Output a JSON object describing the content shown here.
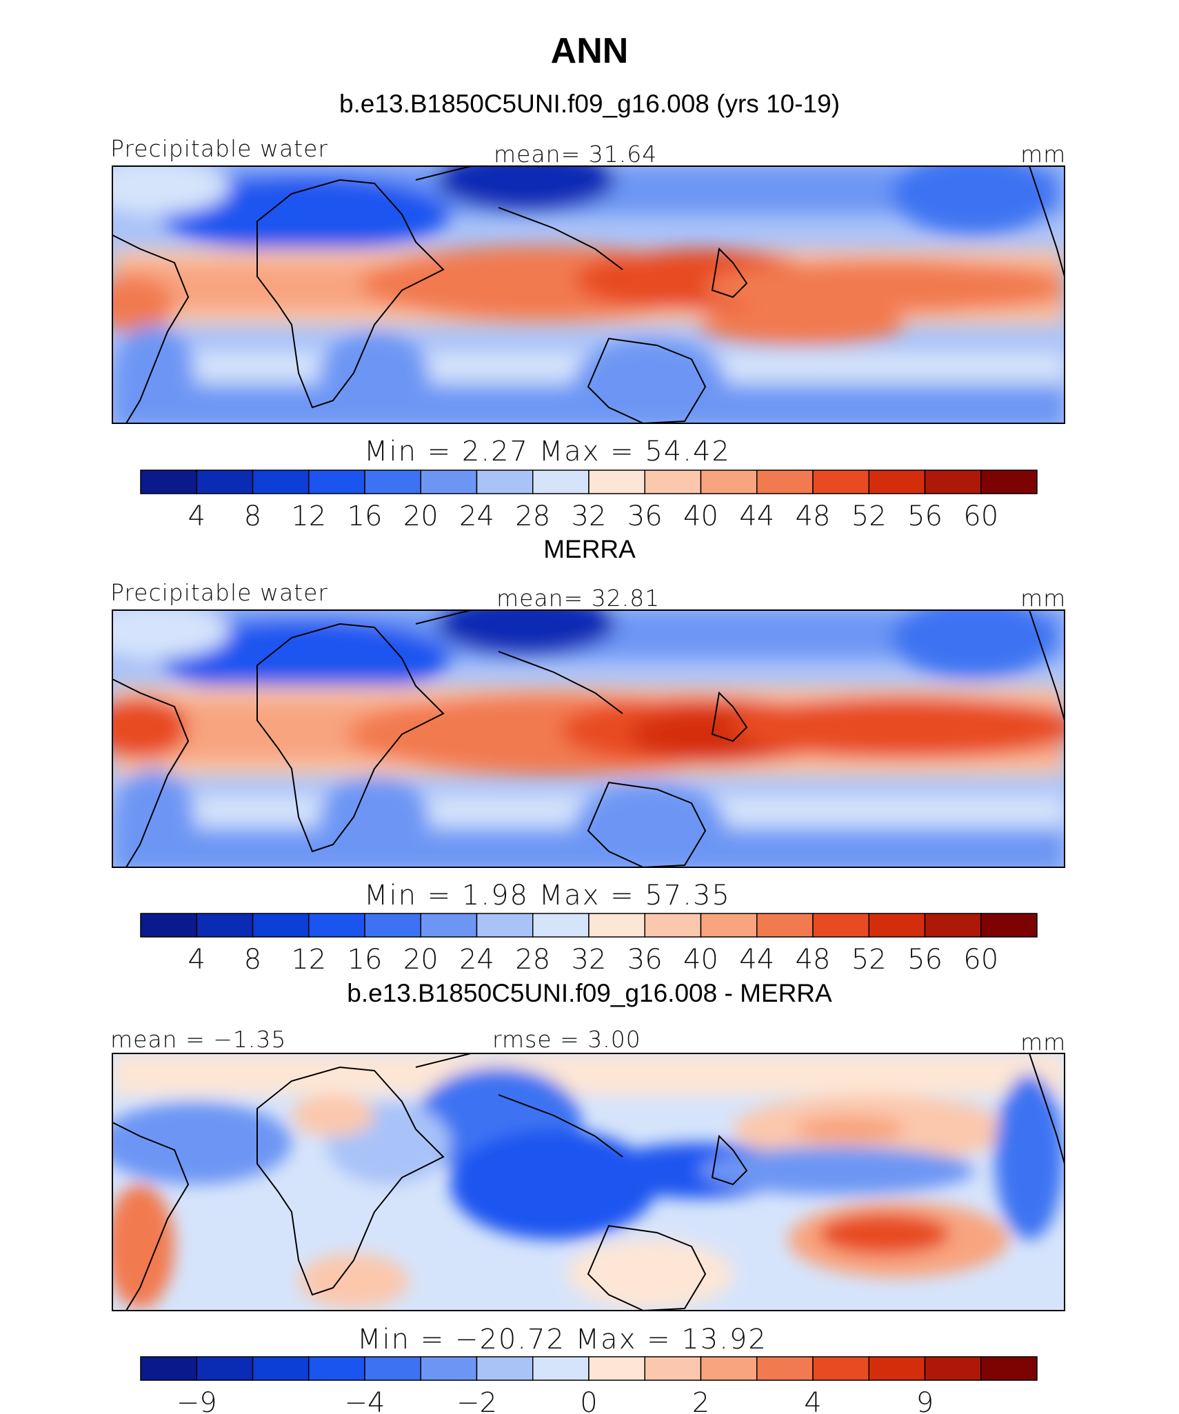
{
  "header": {
    "title": "ANN",
    "subtitle": "b.e13.B1850C5UNI.f09_g16.008 (yrs 10-19)"
  },
  "colors": {
    "abs_scale": [
      "#0a1a8c",
      "#0a2cb4",
      "#0b3fd6",
      "#1a55f0",
      "#3d73f2",
      "#6d96f4",
      "#a9c3f8",
      "#d6e4fb",
      "#fde6d5",
      "#fbc8ad",
      "#f8a47f",
      "#f27a50",
      "#e84b22",
      "#d42d0c",
      "#ad1808",
      "#7d0303"
    ],
    "diff_scale": [
      "#0a1a8c",
      "#0a2cb4",
      "#0b3fd6",
      "#1a55f0",
      "#3d73f2",
      "#6d96f4",
      "#a9c3f8",
      "#d6e4fb",
      "#fde6d5",
      "#fbc8ad",
      "#f8a47f",
      "#f27a50",
      "#e84b22",
      "#d42d0c",
      "#ad1808",
      "#7d0303"
    ]
  },
  "chart_data": [
    {
      "type": "heatmap",
      "panel_title": "",
      "left_label": "Precipitable water",
      "center_label": "mean=   31.64",
      "right_label": "mm",
      "stats": "Min  =     2.27  Max  =    54.42",
      "colorbar_ticks": [
        "4",
        "8",
        "12",
        "16",
        "20",
        "24",
        "28",
        "32",
        "36",
        "40",
        "44",
        "48",
        "52",
        "56",
        "60"
      ],
      "min": 2.27,
      "max": 54.42,
      "mean": 31.64,
      "units": "mm"
    },
    {
      "type": "heatmap",
      "panel_title": "MERRA",
      "left_label": "Precipitable water",
      "center_label": "mean=   32.81",
      "right_label": "mm",
      "stats": "Min  =     1.98  Max  =    57.35",
      "colorbar_ticks": [
        "4",
        "8",
        "12",
        "16",
        "20",
        "24",
        "28",
        "32",
        "36",
        "40",
        "44",
        "48",
        "52",
        "56",
        "60"
      ],
      "min": 1.98,
      "max": 57.35,
      "mean": 32.81,
      "units": "mm"
    },
    {
      "type": "heatmap",
      "panel_title": "b.e13.B1850C5UNI.f09_g16.008 - MERRA",
      "left_label": "mean =   −1.35",
      "center_label": "rmse =    3.00",
      "right_label": "mm",
      "stats": "Min  = −20.72  Max  =    13.92",
      "colorbar_ticks": [
        "−9",
        "−4",
        "−2",
        "0",
        "2",
        "4",
        "9"
      ],
      "min": -20.72,
      "max": 13.92,
      "mean": -1.35,
      "rmse": 3.0,
      "units": "mm"
    }
  ]
}
